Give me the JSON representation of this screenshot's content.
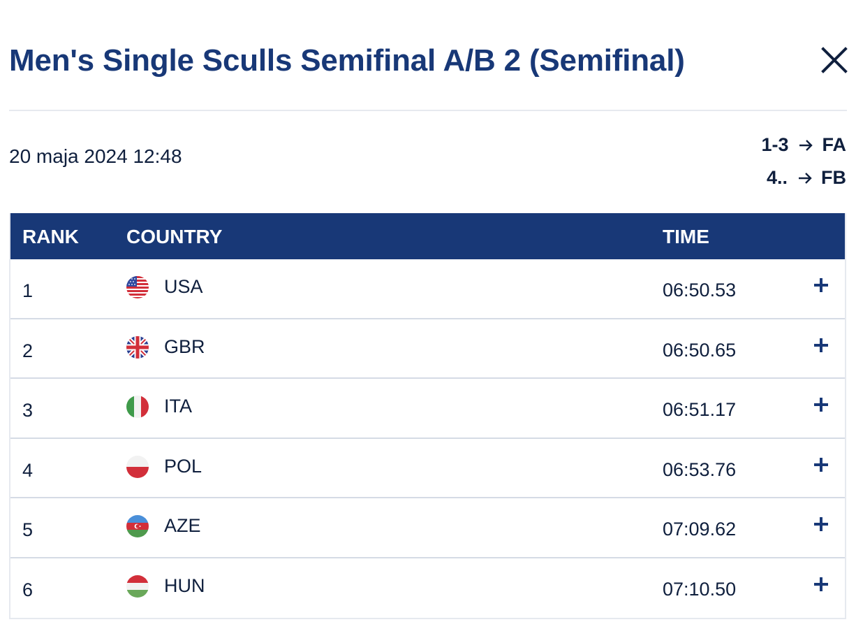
{
  "header": {
    "title": "Men's Single Sculls Semifinal A/B 2 (Semifinal)"
  },
  "meta": {
    "date": "20 maja 2024 12:48"
  },
  "progression": [
    {
      "range": "1-3",
      "target": "FA"
    },
    {
      "range": "4..",
      "target": "FB"
    }
  ],
  "table": {
    "columns": [
      "RANK",
      "COUNTRY",
      "TIME"
    ],
    "rows": [
      {
        "rank": "1",
        "flag": "usa-flag-icon",
        "country": "USA",
        "time": "06:50.53"
      },
      {
        "rank": "2",
        "flag": "gbr-flag-icon",
        "country": "GBR",
        "time": "06:50.65"
      },
      {
        "rank": "3",
        "flag": "ita-flag-icon",
        "country": "ITA",
        "time": "06:51.17"
      },
      {
        "rank": "4",
        "flag": "pol-flag-icon",
        "country": "POL",
        "time": "06:53.76"
      },
      {
        "rank": "5",
        "flag": "aze-flag-icon",
        "country": "AZE",
        "time": "07:09.62"
      },
      {
        "rank": "6",
        "flag": "hun-flag-icon",
        "country": "HUN",
        "time": "07:10.50"
      }
    ]
  },
  "colors": {
    "brand": "#183877",
    "text": "#0f1f3d",
    "divider": "#d5dbe5"
  }
}
